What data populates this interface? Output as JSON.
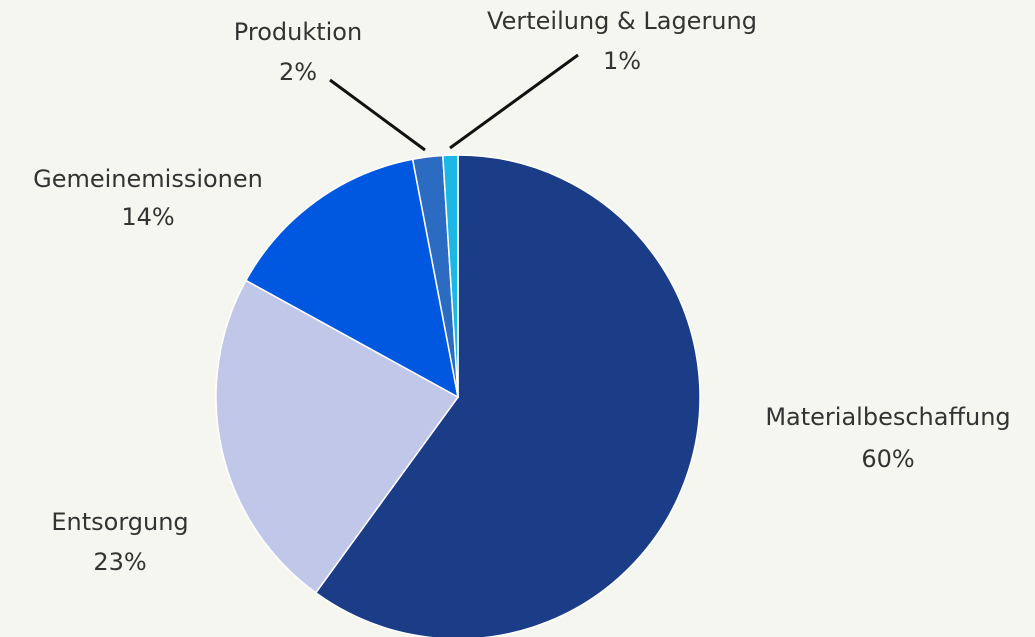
{
  "chart_data": {
    "type": "pie",
    "categories": [
      "Materialbeschaffung",
      "Entsorgung",
      "Gemeinemissionen",
      "Produktion",
      "Verteilung & Lagerung"
    ],
    "values": [
      60,
      23,
      14,
      2,
      1
    ],
    "value_labels": [
      "60%",
      "23%",
      "14%",
      "2%",
      "1%"
    ],
    "colors": [
      "#1b3d87",
      "#c0c7e8",
      "#0158e0",
      "#2b6cc2",
      "#1db7e6"
    ]
  }
}
